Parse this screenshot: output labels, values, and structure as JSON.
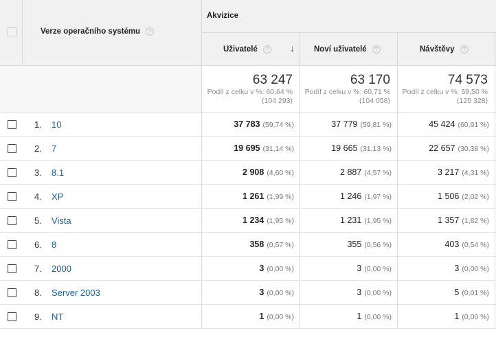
{
  "header": {
    "group_label": "Akvizice",
    "dimension_label": "Verze operačního systému",
    "columns": [
      {
        "label": "Uživatelé",
        "sorted": true
      },
      {
        "label": "Noví uživatelé"
      },
      {
        "label": "Návštěvy"
      }
    ],
    "help_glyph": "?",
    "sort_glyph": "↓"
  },
  "totals": [
    {
      "value": "63 247",
      "share": "Podíl z celku v %: 60,64 %",
      "base": "(104 293)"
    },
    {
      "value": "63 170",
      "share": "Podíl z celku v %: 60,71 %",
      "base": "(104 058)"
    },
    {
      "value": "74 573",
      "share": "Podíl z celku v %: 59,50 %",
      "base": "(125 328)"
    }
  ],
  "rows": [
    {
      "num": "1.",
      "name": "10",
      "users": "37 783",
      "users_pct": "(59,74 %)",
      "new": "37 779",
      "new_pct": "(59,81 %)",
      "visits": "45 424",
      "visits_pct": "(60,91 %)"
    },
    {
      "num": "2.",
      "name": "7",
      "users": "19 695",
      "users_pct": "(31,14 %)",
      "new": "19 665",
      "new_pct": "(31,13 %)",
      "visits": "22 657",
      "visits_pct": "(30,38 %)"
    },
    {
      "num": "3.",
      "name": "8.1",
      "users": "2 908",
      "users_pct": "(4,60 %)",
      "new": "2 887",
      "new_pct": "(4,57 %)",
      "visits": "3 217",
      "visits_pct": "(4,31 %)"
    },
    {
      "num": "4.",
      "name": "XP",
      "users": "1 261",
      "users_pct": "(1,99 %)",
      "new": "1 246",
      "new_pct": "(1,97 %)",
      "visits": "1 506",
      "visits_pct": "(2,02 %)"
    },
    {
      "num": "5.",
      "name": "Vista",
      "users": "1 234",
      "users_pct": "(1,95 %)",
      "new": "1 231",
      "new_pct": "(1,95 %)",
      "visits": "1 357",
      "visits_pct": "(1,82 %)"
    },
    {
      "num": "6.",
      "name": "8",
      "users": "358",
      "users_pct": "(0,57 %)",
      "new": "355",
      "new_pct": "(0,56 %)",
      "visits": "403",
      "visits_pct": "(0,54 %)"
    },
    {
      "num": "7.",
      "name": "2000",
      "users": "3",
      "users_pct": "(0,00 %)",
      "new": "3",
      "new_pct": "(0,00 %)",
      "visits": "3",
      "visits_pct": "(0,00 %)"
    },
    {
      "num": "8.",
      "name": "Server 2003",
      "users": "3",
      "users_pct": "(0,00 %)",
      "new": "3",
      "new_pct": "(0,00 %)",
      "visits": "5",
      "visits_pct": "(0,01 %)"
    },
    {
      "num": "9.",
      "name": "NT",
      "users": "1",
      "users_pct": "(0,00 %)",
      "new": "1",
      "new_pct": "(0,00 %)",
      "visits": "1",
      "visits_pct": "(0,00 %)"
    }
  ],
  "colors": {
    "header_bg": "#f1f1f1",
    "link": "#1a5d91",
    "border": "#d9d9d9"
  }
}
